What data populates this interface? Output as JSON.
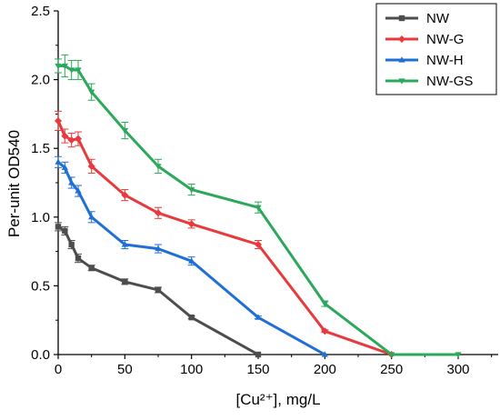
{
  "chart_data": {
    "type": "line",
    "xlabel": "[Cu²⁺], mg/L",
    "ylabel": "Per-unit OD540",
    "xlim": [
      0,
      330
    ],
    "ylim": [
      0,
      2.5
    ],
    "x_ticks": [
      0,
      50,
      100,
      150,
      200,
      250,
      300
    ],
    "y_ticks": [
      0.0,
      0.5,
      1.0,
      1.5,
      2.0,
      2.5
    ],
    "x_tick_labels": [
      "0",
      "50",
      "100",
      "150",
      "200",
      "250",
      "300"
    ],
    "y_tick_labels": [
      "0.0",
      "0.5",
      "1.0",
      "1.5",
      "2.0",
      "2.5"
    ],
    "legend_position": "top-right",
    "grid": false,
    "series": [
      {
        "name": "NW",
        "color": "#4d4d4d",
        "marker": "square",
        "x": [
          0,
          5,
          10,
          15,
          25,
          50,
          75,
          100,
          150
        ],
        "y": [
          0.93,
          0.9,
          0.8,
          0.7,
          0.63,
          0.53,
          0.47,
          0.27,
          0.0
        ],
        "err": [
          0.03,
          0.03,
          0.03,
          0.03,
          0.02,
          0.02,
          0.02,
          0.01,
          0.0
        ]
      },
      {
        "name": "NW-G",
        "color": "#e8393c",
        "marker": "diamond",
        "x": [
          0,
          5,
          10,
          15,
          25,
          50,
          75,
          100,
          150,
          200,
          250
        ],
        "y": [
          1.7,
          1.59,
          1.56,
          1.57,
          1.37,
          1.16,
          1.03,
          0.95,
          0.8,
          0.17,
          0.0
        ],
        "err": [
          0.07,
          0.05,
          0.05,
          0.05,
          0.05,
          0.04,
          0.04,
          0.03,
          0.03,
          0.01,
          0.0
        ]
      },
      {
        "name": "NW-H",
        "color": "#1f6fd6",
        "marker": "triangle",
        "x": [
          0,
          5,
          10,
          15,
          25,
          50,
          75,
          100,
          150,
          200
        ],
        "y": [
          1.4,
          1.36,
          1.25,
          1.19,
          1.0,
          0.8,
          0.77,
          0.68,
          0.27,
          0.0
        ],
        "err": [
          0.04,
          0.04,
          0.04,
          0.04,
          0.04,
          0.03,
          0.03,
          0.03,
          0.01,
          0.0
        ]
      },
      {
        "name": "NW-GS",
        "color": "#2ca85a",
        "marker": "triangle-down",
        "x": [
          0,
          5,
          10,
          15,
          25,
          50,
          75,
          100,
          150,
          200,
          250,
          300
        ],
        "y": [
          2.1,
          2.1,
          2.07,
          2.07,
          1.91,
          1.63,
          1.37,
          1.2,
          1.07,
          0.37,
          0.0,
          0.0
        ],
        "err": [
          0.05,
          0.08,
          0.07,
          0.07,
          0.06,
          0.06,
          0.05,
          0.04,
          0.04,
          0.02,
          0.0,
          0.0
        ]
      }
    ]
  }
}
